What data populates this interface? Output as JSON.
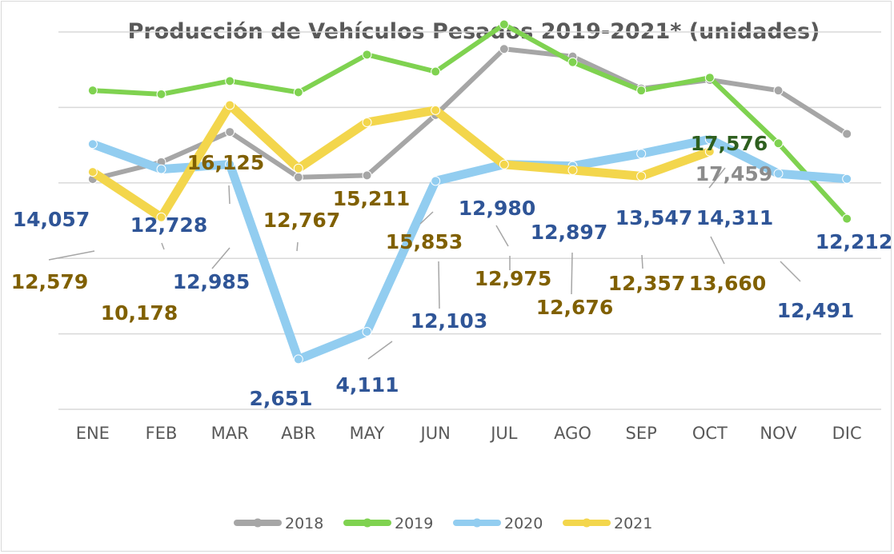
{
  "chart_data": {
    "type": "line",
    "title": "Producción de Vehículos Pesados 2019-2021* (unidades)",
    "xlabel": "",
    "ylabel": "",
    "ylim": [
      0,
      20000
    ],
    "grid": true,
    "legend_position": "bottom",
    "categories": [
      "ENE",
      "FEB",
      "MAR",
      "ABR",
      "MAY",
      "JUN",
      "JUL",
      "AGO",
      "SEP",
      "OCT",
      "NOV",
      "DIC"
    ],
    "series": [
      {
        "name": "2018",
        "color": "#a6a6a6",
        "values": [
          12200,
          13100,
          14700,
          12300,
          12400,
          15600,
          19100,
          18700,
          17000,
          17459,
          16900,
          14600
        ],
        "labels": [
          null,
          null,
          null,
          null,
          null,
          null,
          null,
          null,
          null,
          "17,459",
          null,
          null
        ]
      },
      {
        "name": "2019",
        "color": "#7fd250",
        "values": [
          16900,
          16700,
          17400,
          16800,
          18800,
          17900,
          20400,
          18400,
          16900,
          17576,
          14100,
          10100
        ],
        "labels": [
          null,
          null,
          null,
          null,
          null,
          null,
          null,
          null,
          null,
          "17,576",
          null,
          null
        ]
      },
      {
        "name": "2020",
        "color": "#92cdf0",
        "values": [
          14057,
          12728,
          12985,
          2651,
          4111,
          12103,
          12980,
          12897,
          13547,
          14311,
          12491,
          12212
        ],
        "labels": [
          "14,057",
          "12,728",
          "12,985",
          "2,651",
          "4,111",
          "12,103",
          "12,980",
          "12,897",
          "13,547",
          "14,311",
          "12,491",
          "12,212"
        ]
      },
      {
        "name": "2021",
        "color": "#f3d64c",
        "values": [
          12579,
          10178,
          16125,
          12767,
          15211,
          15853,
          12975,
          12676,
          12357,
          13660,
          null,
          null
        ],
        "labels": [
          "12,579",
          "10,178",
          "16,125",
          "12,767",
          "15,211",
          "15,853",
          "12,975",
          "12,676",
          "12,357",
          "13,660",
          null,
          null
        ]
      }
    ],
    "label_colors": {
      "2018": "#8c8c8c",
      "2019": "#2e5f1f",
      "2020": "#2f5597",
      "2021": "#806000"
    }
  }
}
